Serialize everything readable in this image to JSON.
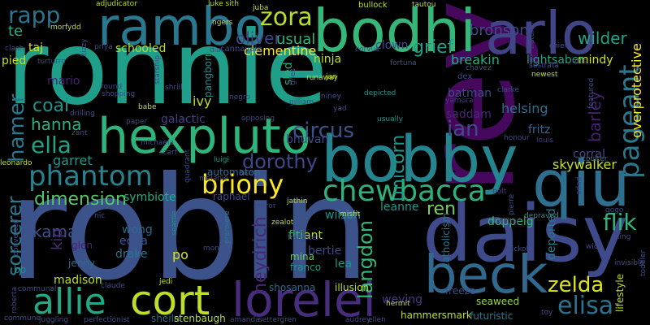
{
  "words": [
    {
      "text": "ronnie",
      "color": "#1f9e89"
    },
    {
      "text": "rey",
      "color": "#46085c"
    },
    {
      "text": "robin",
      "color": "#3b528b"
    },
    {
      "text": "bodhi",
      "color": "#35b779"
    },
    {
      "text": "rambo",
      "color": "#2a788e"
    },
    {
      "text": "arlo",
      "color": "#414487"
    },
    {
      "text": "bobby",
      "color": "#25858e"
    },
    {
      "text": "hexpluto",
      "color": "#2fb47c"
    },
    {
      "text": "daisy",
      "color": "#3e4a89"
    },
    {
      "text": "qiu",
      "color": "#2e6e8e"
    },
    {
      "text": "beck",
      "color": "#31688e"
    },
    {
      "text": "lorelei",
      "color": "#472d7b"
    },
    {
      "text": "cort",
      "color": "#bddf26"
    },
    {
      "text": "allie",
      "color": "#22a884"
    },
    {
      "text": "phantom",
      "color": "#26828e"
    },
    {
      "text": "chewbacca",
      "color": "#2db27d"
    },
    {
      "text": "briony",
      "color": "#fde725"
    },
    {
      "text": "dorothy",
      "color": "#3e4989"
    },
    {
      "text": "pageant",
      "color": "#2a788e"
    },
    {
      "text": "elisa",
      "color": "#2c728e"
    },
    {
      "text": "zelda",
      "color": "#dde318"
    },
    {
      "text": "zora",
      "color": "#b8de29"
    },
    {
      "text": "rapp",
      "color": "#2c738e"
    },
    {
      "text": "hamer",
      "color": "#2a768e"
    },
    {
      "text": "ella",
      "color": "#20a386"
    },
    {
      "text": "circus",
      "color": "#3b528b"
    },
    {
      "text": "ian",
      "color": "#3e4a89"
    },
    {
      "text": "dimension",
      "color": "#54c568"
    },
    {
      "text": "sorcerer",
      "color": "#2a788e"
    },
    {
      "text": "flik",
      "color": "#2fb47c"
    },
    {
      "text": "unicorn",
      "color": "#1f968b"
    },
    {
      "text": "langdon",
      "color": "#35b779"
    },
    {
      "text": "heydrich",
      "color": "#482677"
    },
    {
      "text": "ren",
      "color": "#75d054"
    },
    {
      "text": "kamar",
      "color": "#3b528b"
    },
    {
      "text": "oliver",
      "color": "#414487"
    },
    {
      "text": "grief",
      "color": "#1f9e89"
    },
    {
      "text": "wilder",
      "color": "#20a386"
    },
    {
      "text": "bronson",
      "color": "#3e4a89"
    },
    {
      "text": "hanna",
      "color": "#29af7f"
    },
    {
      "text": "coal",
      "color": "#21918c"
    },
    {
      "text": "usual",
      "color": "#2fb47c"
    },
    {
      "text": "clementine",
      "color": "#fde725"
    },
    {
      "text": "barley",
      "color": "#482071"
    },
    {
      "text": "overprotective",
      "color": "#fde725"
    },
    {
      "text": "skywalker",
      "color": "#c2df23"
    },
    {
      "text": "helsing",
      "color": "#2d708e"
    },
    {
      "text": "mindy",
      "color": "#d0e11c"
    },
    {
      "text": "lightsaber",
      "color": "#20a386"
    },
    {
      "text": "breakin",
      "color": "#26ad81"
    },
    {
      "text": "batman",
      "color": "#3e4a89"
    },
    {
      "text": "saddam",
      "color": "#482878"
    },
    {
      "text": "fritz",
      "color": "#31688e"
    },
    {
      "text": "corral",
      "color": "#3e4a89"
    },
    {
      "text": "te",
      "color": "#27ad81"
    },
    {
      "text": "taj",
      "color": "#d8e219"
    },
    {
      "text": "pied",
      "color": "#c2df23"
    },
    {
      "text": "mario",
      "color": "#482173"
    },
    {
      "text": "ivy",
      "color": "#bddf26"
    },
    {
      "text": "schooled",
      "color": "#b5de2b"
    },
    {
      "text": "galactic",
      "color": "#433e85"
    },
    {
      "text": "symbiote",
      "color": "#25ac82"
    },
    {
      "text": "raphael",
      "color": "#3e4a89"
    },
    {
      "text": "automaton",
      "color": "#2d708e"
    },
    {
      "text": "garret",
      "color": "#1f968b"
    },
    {
      "text": "wong",
      "color": "#31688e"
    },
    {
      "text": "edna",
      "color": "#3b528b"
    },
    {
      "text": "drake",
      "color": "#2c728e"
    },
    {
      "text": "glen",
      "color": "#482071"
    },
    {
      "text": "kip",
      "color": "#472d7b"
    },
    {
      "text": "jenny",
      "color": "#31688e"
    },
    {
      "text": "madison",
      "color": "#bddf26"
    },
    {
      "text": "fiti",
      "color": "#35b779"
    },
    {
      "text": "ant",
      "color": "#bddf26"
    },
    {
      "text": "bertie",
      "color": "#3e4a89"
    },
    {
      "text": "wilson",
      "color": "#21918c"
    },
    {
      "text": "leanne",
      "color": "#1f968b"
    },
    {
      "text": "deported",
      "color": "#2a788e"
    },
    {
      "text": "doppelg",
      "color": "#35b779"
    },
    {
      "text": "weying",
      "color": "#443983"
    },
    {
      "text": "lea",
      "color": "#1f968b"
    },
    {
      "text": "mina",
      "color": "#6ccd5a"
    },
    {
      "text": "franco",
      "color": "#1f968b"
    },
    {
      "text": "po",
      "color": "#dde318"
    },
    {
      "text": "hammersmark",
      "color": "#bddf26"
    },
    {
      "text": "sheila",
      "color": "#31688e"
    },
    {
      "text": "stenbaugh",
      "color": "#b5de2b"
    },
    {
      "text": "shosanna",
      "color": "#31688e"
    },
    {
      "text": "illusion",
      "color": "#bddf26"
    },
    {
      "text": "futuristic",
      "color": "#2a788e"
    },
    {
      "text": "seaweed",
      "color": "#95d840"
    },
    {
      "text": "freeze",
      "color": "#3e4a89"
    },
    {
      "text": "catholicism",
      "color": "#2c728e"
    },
    {
      "text": "lifestyle",
      "color": "#bddf26"
    },
    {
      "text": "ninja",
      "color": "#bddf26"
    },
    {
      "text": "clown",
      "color": "#3e4a89"
    },
    {
      "text": "sled",
      "color": "#27ad81"
    },
    {
      "text": "bhuvan",
      "color": "#3e4a89"
    },
    {
      "text": "pangborn",
      "color": "#21918c"
    },
    {
      "text": "cannavale",
      "color": "#3e4a89"
    },
    {
      "text": "adjudicator",
      "color": "#b8de29"
    },
    {
      "text": "bullock",
      "color": "#b5de2b"
    },
    {
      "text": "tautou",
      "color": "#bddf26"
    },
    {
      "text": "dex",
      "color": "#3e4a89"
    },
    {
      "text": "newest",
      "color": "#bddf26"
    },
    {
      "text": "ehle",
      "color": "#3e4a89"
    },
    {
      "text": "depicted",
      "color": "#21918c"
    },
    {
      "text": "yamura",
      "color": "#443983"
    },
    {
      "text": "usually",
      "color": "#21918c"
    },
    {
      "text": "melanie",
      "color": "#3e4a89"
    },
    {
      "text": "barr",
      "color": "#3e4a89"
    },
    {
      "text": "opposing",
      "color": "#3e4a89"
    },
    {
      "text": "mirror",
      "color": "#3e4a89"
    },
    {
      "text": "negro",
      "color": "#3e4a89"
    },
    {
      "text": "luigi",
      "color": "#21918c"
    },
    {
      "text": "priya",
      "color": "#3e4a89"
    },
    {
      "text": "louis",
      "color": "#443983"
    },
    {
      "text": "holt",
      "color": "#443983"
    },
    {
      "text": "honour",
      "color": "#3e4a89"
    },
    {
      "text": "coulter",
      "color": "#2a788e"
    },
    {
      "text": "wilbur",
      "color": "#443983"
    },
    {
      "text": "depraved",
      "color": "#21918c"
    },
    {
      "text": "hickok",
      "color": "#3e4a89"
    },
    {
      "text": "misfit",
      "color": "#b5de2b"
    },
    {
      "text": "jathin",
      "color": "#bddf26"
    },
    {
      "text": "zealot",
      "color": "#bddf26"
    },
    {
      "text": "hermit",
      "color": "#bddf26"
    },
    {
      "text": "seattle",
      "color": "#21918c"
    },
    {
      "text": "premiere",
      "color": "#2a788e"
    },
    {
      "text": "jedi",
      "color": "#bddf26"
    },
    {
      "text": "claude",
      "color": "#3e4a89"
    },
    {
      "text": "nic",
      "color": "#3e4a89"
    },
    {
      "text": "converted",
      "color": "#3e4a89"
    },
    {
      "text": "roberta",
      "color": "#3e4a89"
    },
    {
      "text": "bb",
      "color": "#21918c"
    },
    {
      "text": "leonardo",
      "color": "#bddf26"
    },
    {
      "text": "amanda",
      "color": "#3e4a89"
    },
    {
      "text": "settergren",
      "color": "#3e4a89"
    },
    {
      "text": "juggling",
      "color": "#3e4a89"
    },
    {
      "text": "perfectionist",
      "color": "#3e4a89"
    },
    {
      "text": "ellen",
      "color": "#3e4a89"
    },
    {
      "text": "audrey",
      "color": "#3e4a89"
    },
    {
      "text": "fortuna",
      "color": "#3e4a89"
    },
    {
      "text": "runaway",
      "color": "#bddf26"
    },
    {
      "text": "jan",
      "color": "#bddf26"
    },
    {
      "text": "gilliam",
      "color": "#3e4a89"
    },
    {
      "text": "niney",
      "color": "#3e4a89"
    },
    {
      "text": "clarke",
      "color": "#3e4a89"
    },
    {
      "text": "zant",
      "color": "#3e4a89"
    },
    {
      "text": "babe",
      "color": "#bddf26"
    },
    {
      "text": "shrill",
      "color": "#3e4a89"
    },
    {
      "text": "paper",
      "color": "#3e4a89"
    },
    {
      "text": "michaela",
      "color": "#3e4a89"
    },
    {
      "text": "scarf",
      "color": "#3e4a89"
    },
    {
      "text": "juba",
      "color": "#bddf26"
    },
    {
      "text": "dial",
      "color": "#3e4a89"
    },
    {
      "text": "morfydd",
      "color": "#bddf26"
    },
    {
      "text": "turturro",
      "color": "#3e4a89"
    },
    {
      "text": "kizzy",
      "color": "#3e4a89"
    },
    {
      "text": "round",
      "color": "#3e4a89"
    },
    {
      "text": "shopping",
      "color": "#3e4a89"
    },
    {
      "text": "starship",
      "color": "#3e4a89"
    },
    {
      "text": "drilling",
      "color": "#3e4a89"
    },
    {
      "text": "luke sith",
      "color": "#bddf26"
    },
    {
      "text": "ngers",
      "color": "#bddf26"
    },
    {
      "text": "corvus",
      "color": "#3e4a89"
    },
    {
      "text": "chavez",
      "color": "#3e4a89"
    },
    {
      "text": "sustrata",
      "color": "#3e4a89"
    },
    {
      "text": "natural",
      "color": "#3e4a89"
    },
    {
      "text": "chien",
      "color": "#3e4a89"
    },
    {
      "text": "featured",
      "color": "#3e4a89"
    },
    {
      "text": "pierre",
      "color": "#3e4a89"
    },
    {
      "text": "adad",
      "color": "#3e4a89"
    },
    {
      "text": "ling",
      "color": "#3e4a89"
    },
    {
      "text": "wick",
      "color": "#3e4a89"
    },
    {
      "text": "toy",
      "color": "#3e4a89"
    },
    {
      "text": "clash",
      "color": "#3e4a89"
    },
    {
      "text": "yad",
      "color": "#3e4a89"
    },
    {
      "text": "quadrant",
      "color": "#3e4a89"
    },
    {
      "text": "communal",
      "color": "#3e4a89"
    },
    {
      "text": "commune",
      "color": "#3e4a89"
    },
    {
      "text": "freighter",
      "color": "#3e4a89"
    },
    {
      "text": "mon",
      "color": "#3e4a89"
    },
    {
      "text": "invisible",
      "color": "#3e4a89"
    },
    {
      "text": "toddler",
      "color": "#3e4a89"
    },
    {
      "text": "gogo",
      "color": "#3e4a89"
    },
    {
      "text": "giles",
      "color": "#3e4a89"
    }
  ]
}
